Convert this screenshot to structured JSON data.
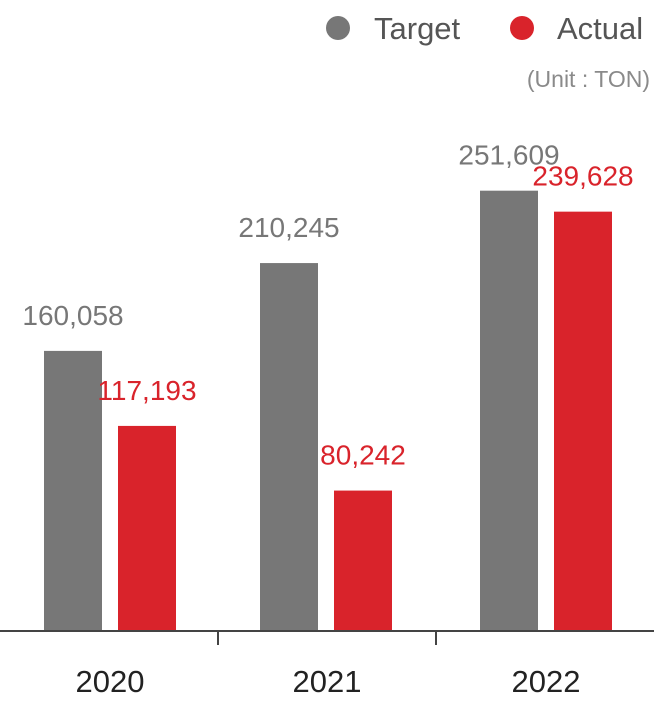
{
  "chart_data": {
    "type": "bar",
    "categories": [
      "2020",
      "2021",
      "2022"
    ],
    "series": [
      {
        "name": "Target",
        "color": "#777777",
        "label_color": "#777777",
        "values": [
          160058,
          210245,
          251609
        ],
        "labels": [
          "160,058",
          "210,245",
          "251,609"
        ]
      },
      {
        "name": "Actual",
        "color": "#d9232b",
        "label_color": "#d9232b",
        "values": [
          117193,
          80242,
          239628
        ],
        "labels": [
          "117,193",
          "80,242",
          "239,628"
        ]
      }
    ],
    "unit": "(Unit : TON)",
    "ylim": [
      0,
      320000
    ],
    "grid": false,
    "legend_position": "top-right",
    "axis_color": "#444444"
  }
}
